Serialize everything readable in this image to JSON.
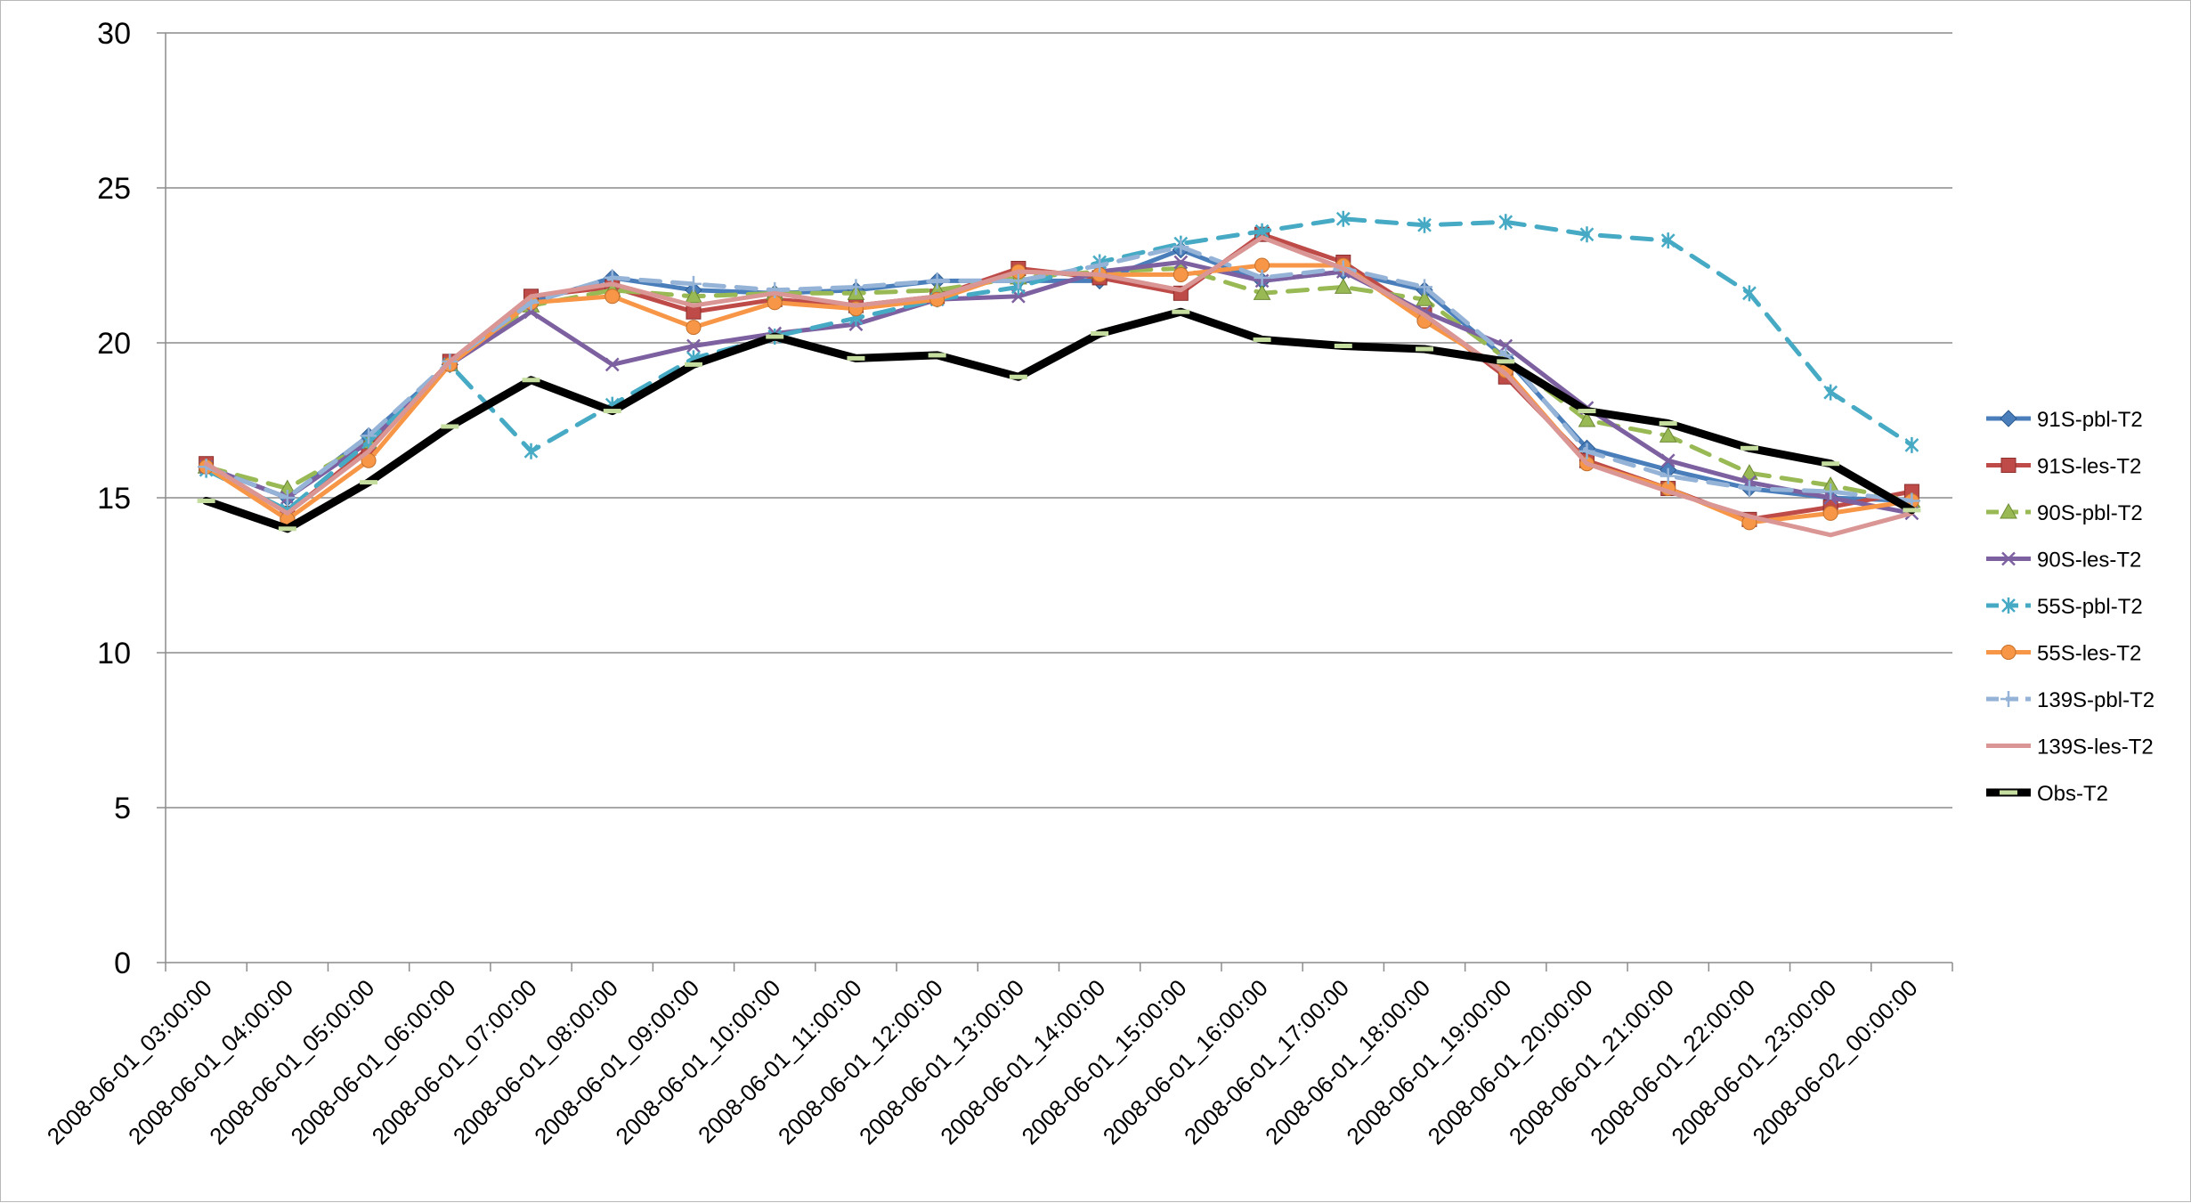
{
  "chart_data": {
    "type": "line",
    "title": "",
    "xlabel": "",
    "ylabel": "",
    "ylim": [
      0,
      30
    ],
    "yticks": [
      0,
      5,
      10,
      15,
      20,
      25,
      30
    ],
    "grid": "horizontal",
    "legend_position": "right",
    "categories": [
      "2008-06-01_03:00:00",
      "2008-06-01_04:00:00",
      "2008-06-01_05:00:00",
      "2008-06-01_06:00:00",
      "2008-06-01_07:00:00",
      "2008-06-01_08:00:00",
      "2008-06-01_09:00:00",
      "2008-06-01_10:00:00",
      "2008-06-01_11:00:00",
      "2008-06-01_12:00:00",
      "2008-06-01_13:00:00",
      "2008-06-01_14:00:00",
      "2008-06-01_15:00:00",
      "2008-06-01_16:00:00",
      "2008-06-01_17:00:00",
      "2008-06-01_18:00:00",
      "2008-06-01_19:00:00",
      "2008-06-01_20:00:00",
      "2008-06-01_21:00:00",
      "2008-06-01_22:00:00",
      "2008-06-01_23:00:00",
      "2008-06-02_00:00:00"
    ],
    "series": [
      {
        "name": "91S-pbl-T2",
        "color": "#4a7ebb",
        "marker": "diamond",
        "dashed": false,
        "values": [
          16.0,
          15.0,
          17.0,
          19.3,
          21.3,
          22.1,
          21.7,
          21.6,
          21.7,
          22.0,
          22.0,
          22.0,
          23.0,
          22.0,
          22.3,
          21.7,
          19.5,
          16.6,
          15.9,
          15.3,
          15.0,
          14.9
        ]
      },
      {
        "name": "91S-les-T2",
        "color": "#be4b48",
        "marker": "square",
        "dashed": false,
        "values": [
          16.1,
          14.5,
          16.6,
          19.4,
          21.5,
          21.8,
          21.0,
          21.4,
          21.2,
          21.5,
          22.4,
          22.1,
          21.6,
          23.5,
          22.6,
          20.9,
          18.9,
          16.2,
          15.3,
          14.3,
          14.7,
          15.2
        ]
      },
      {
        "name": "90S-pbl-T2",
        "color": "#98b954",
        "marker": "triangle",
        "dashed": true,
        "values": [
          16.0,
          15.3,
          16.8,
          19.3,
          21.2,
          21.7,
          21.5,
          21.6,
          21.6,
          21.7,
          22.1,
          22.3,
          22.4,
          21.6,
          21.8,
          21.4,
          19.5,
          17.5,
          17.0,
          15.8,
          15.4,
          14.9
        ]
      },
      {
        "name": "90S-les-T2",
        "color": "#7d60a0",
        "marker": "x",
        "dashed": false,
        "values": [
          16.0,
          15.0,
          16.8,
          19.3,
          21.0,
          19.3,
          19.9,
          20.3,
          20.6,
          21.4,
          21.5,
          22.3,
          22.6,
          22.0,
          22.3,
          21.0,
          19.9,
          17.9,
          16.2,
          15.5,
          15.0,
          14.5
        ]
      },
      {
        "name": "55S-pbl-T2",
        "color": "#46aac5",
        "marker": "asterisk",
        "dashed": true,
        "values": [
          15.9,
          14.6,
          16.8,
          19.3,
          16.5,
          18.0,
          19.5,
          20.2,
          20.8,
          21.4,
          21.8,
          22.6,
          23.2,
          23.6,
          24.0,
          23.8,
          23.9,
          23.5,
          23.3,
          21.6,
          18.4,
          16.7
        ]
      },
      {
        "name": "55S-les-T2",
        "color": "#f79646",
        "marker": "circle",
        "dashed": false,
        "values": [
          16.0,
          14.3,
          16.2,
          19.3,
          21.3,
          21.5,
          20.5,
          21.3,
          21.1,
          21.4,
          22.3,
          22.2,
          22.2,
          22.5,
          22.5,
          20.7,
          19.1,
          16.1,
          15.3,
          14.2,
          14.5,
          14.9
        ]
      },
      {
        "name": "139S-pbl-T2",
        "color": "#95b3d7",
        "marker": "plus",
        "dashed": true,
        "values": [
          16.0,
          15.0,
          17.0,
          19.4,
          21.3,
          22.1,
          21.9,
          21.7,
          21.8,
          22.0,
          22.0,
          22.5,
          23.1,
          22.1,
          22.4,
          21.8,
          19.6,
          16.5,
          15.7,
          15.3,
          15.2,
          14.9
        ]
      },
      {
        "name": "139S-les-T2",
        "color": "#d99694",
        "marker": "none",
        "dashed": false,
        "values": [
          16.1,
          14.5,
          16.5,
          19.4,
          21.5,
          21.9,
          21.2,
          21.6,
          21.2,
          21.5,
          22.3,
          22.2,
          21.7,
          23.4,
          22.4,
          20.9,
          19.0,
          16.1,
          15.2,
          14.4,
          13.8,
          14.5
        ]
      },
      {
        "name": "Obs-T2",
        "color": "#000000",
        "marker": "dash",
        "dashed": false,
        "values": [
          14.9,
          14.0,
          15.5,
          17.3,
          18.8,
          17.8,
          19.3,
          20.2,
          19.5,
          19.6,
          18.9,
          20.3,
          21.0,
          20.1,
          19.9,
          19.8,
          19.4,
          17.8,
          17.4,
          16.6,
          16.1,
          14.6
        ]
      }
    ]
  }
}
